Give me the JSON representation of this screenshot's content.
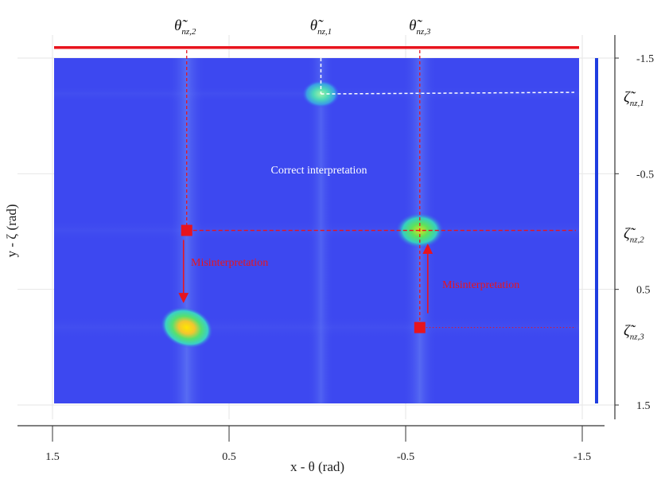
{
  "chart_data": {
    "type": "heatmap",
    "xlabel": "x - θ (rad)",
    "ylabel": "y - ζ (rad)",
    "x_ticks": [
      "1.5",
      "0.5",
      "-0.5",
      "-1.5"
    ],
    "y_ticks": [
      "-1.5",
      "-0.5",
      "0.5",
      "1.5"
    ],
    "xlim": [
      1.5,
      -1.5
    ],
    "ylim": [
      -1.5,
      1.5
    ],
    "grid": true,
    "peaks": [
      {
        "id": "p1",
        "x": -0.02,
        "y": -1.19,
        "intensity": 0.45
      },
      {
        "id": "p2",
        "x": -0.58,
        "y": -0.01,
        "intensity": 0.75
      },
      {
        "id": "p3",
        "x": 0.74,
        "y": 0.83,
        "intensity": 0.9
      }
    ],
    "theta_labels": [
      {
        "base": "θ̃",
        "sub": "nz,2",
        "x": 0.74
      },
      {
        "base": "θ̃",
        "sub": "nz,1",
        "x": -0.02
      },
      {
        "base": "θ̃",
        "sub": "nz,3",
        "x": -0.58
      }
    ],
    "zeta_labels": [
      {
        "base": "ζ̃",
        "sub": "nz,1",
        "y": -1.19
      },
      {
        "base": "ζ̃",
        "sub": "nz,2",
        "y": -0.01
      },
      {
        "base": "ζ̃",
        "sub": "nz,3",
        "y": 0.83
      }
    ],
    "annotations": {
      "correct": "Correct interpretation",
      "misinterpretation_1": "Misinterpretation",
      "misinterpretation_2": "Misinterpretation"
    },
    "markers": [
      {
        "x": 0.74,
        "y": -0.01
      },
      {
        "x": -0.58,
        "y": 0.83
      }
    ],
    "colors": {
      "background": "#3d48f0",
      "red": "#e8141e",
      "projection_bar": "#1f3de0",
      "guide_white": "#ffffff"
    }
  }
}
